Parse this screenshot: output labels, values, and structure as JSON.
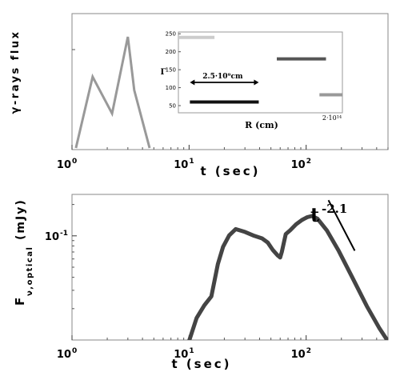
{
  "chart_data": [
    {
      "type": "line",
      "panel": "top",
      "xscale": "log",
      "xlabel": "t (sec)",
      "ylabel": "γ-rays flux",
      "xlim": [
        1,
        500
      ],
      "xticks": [
        {
          "value": 1,
          "base": "10",
          "exp": "0"
        },
        {
          "value": 10,
          "base": "10",
          "exp": "1"
        },
        {
          "value": 100,
          "base": "10",
          "exp": "2"
        }
      ],
      "series": [
        {
          "color": "#999999",
          "x": [
            1.08,
            1.5,
            2.2,
            3.0,
            3.4,
            4.6
          ],
          "y": [
            0.0,
            0.64,
            0.31,
            1.0,
            0.52,
            0.0
          ]
        }
      ],
      "inset": {
        "type": "segments",
        "xlabel": "R (cm)",
        "ylabel": "Γ",
        "yticks": [
          50,
          100,
          150,
          200,
          250
        ],
        "ylim": [
          30,
          255
        ],
        "corner_label": "2·10¹⁴",
        "annotation": "2.5·10⁹cm",
        "segments": [
          {
            "x": [
              0.0,
              0.22
            ],
            "y": 240,
            "color": "#cccccc"
          },
          {
            "x": [
              0.07,
              0.49
            ],
            "y": 60,
            "color": "#111111"
          },
          {
            "x": [
              0.6,
              0.9
            ],
            "y": 180,
            "color": "#555555"
          },
          {
            "x": [
              0.86,
              1.0
            ],
            "y": 80,
            "color": "#999999"
          }
        ]
      }
    },
    {
      "type": "line",
      "panel": "bottom",
      "xscale": "log",
      "yscale": "log",
      "xlabel": "t (sec)",
      "ylabel_main": "F",
      "ylabel_sub": "ν,optical",
      "ylabel_unit": "(mJy)",
      "xlim": [
        1,
        500
      ],
      "ylim": [
        0.01,
        0.25
      ],
      "xticks": [
        {
          "value": 1,
          "base": "10",
          "exp": "0"
        },
        {
          "value": 10,
          "base": "10",
          "exp": "1"
        },
        {
          "value": 100,
          "base": "10",
          "exp": "2"
        }
      ],
      "yticks": [
        {
          "value": 0.1,
          "base": "10",
          "exp": "-1"
        }
      ],
      "series": [
        {
          "color": "#444444",
          "x": [
            10,
            11.6,
            13.5,
            15.5,
            17.6,
            19.5,
            22.0,
            25.0,
            30.0,
            36.0,
            42.0,
            47.0,
            52.0,
            57.0,
            60.0,
            62.0,
            67.0,
            73.0,
            82.0,
            92.0,
            102.0,
            112.0,
            125.0,
            150.0,
            190.0,
            250.0,
            330.0,
            420.0,
            500.0
          ],
          "y": [
            0.0098,
            0.0163,
            0.0215,
            0.0262,
            0.0535,
            0.0784,
            0.101,
            0.116,
            0.109,
            0.1,
            0.0945,
            0.0862,
            0.073,
            0.065,
            0.0619,
            0.0702,
            0.104,
            0.113,
            0.129,
            0.142,
            0.151,
            0.155,
            0.146,
            0.113,
            0.0715,
            0.0392,
            0.0211,
            0.0131,
            0.0097
          ]
        },
        {
          "color": "#000000",
          "x": [
            155,
            260
          ],
          "y": [
            0.22,
            0.072
          ],
          "slope": -2.1
        }
      ],
      "annotation": {
        "base": "t",
        "exp": "-2.1"
      }
    }
  ]
}
